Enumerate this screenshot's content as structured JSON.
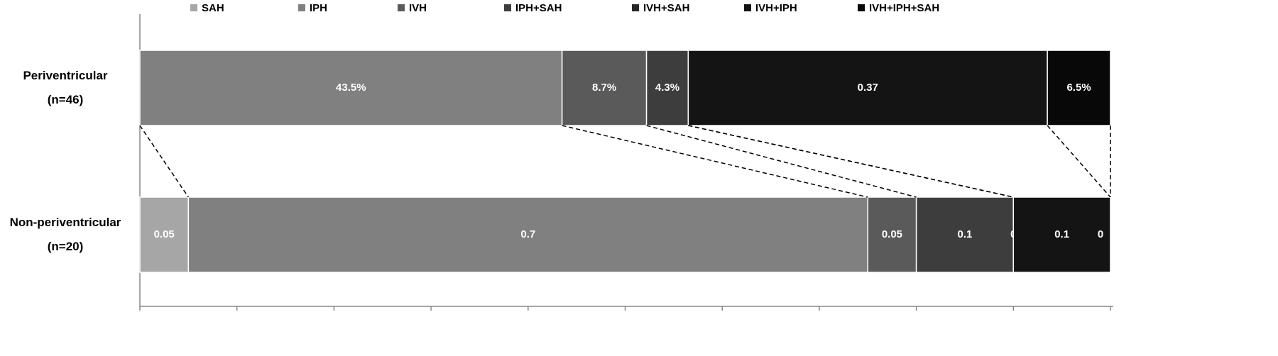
{
  "chart_data": {
    "type": "stacked_bar_h",
    "categories": [
      "Periventricular\n(n=46)",
      "Non-periventricular\n(n=20)"
    ],
    "series": [
      {
        "name": "SAH",
        "color": "#a6a6a6",
        "values": [
          0,
          0.05
        ]
      },
      {
        "name": "IPH",
        "color": "#808080",
        "values": [
          0.435,
          0.7
        ],
        "value_labels": [
          "43.5%",
          "0.7"
        ]
      },
      {
        "name": "IVH",
        "color": "#5a5a5a",
        "values": [
          0.087,
          0.05
        ],
        "value_labels": [
          "8.7%",
          "0.05"
        ]
      },
      {
        "name": "IPH+SAH",
        "color": "#3d3d3d",
        "values": [
          0.043,
          0.1
        ],
        "value_labels": [
          "4.3%",
          "0.1"
        ]
      },
      {
        "name": "IVH+SAH",
        "color": "#262626",
        "values": [
          0,
          0
        ]
      },
      {
        "name": "IVH+IPH",
        "color": "#141414",
        "values": [
          0.37,
          0.1
        ]
      },
      {
        "name": "IVH+IPH+SAH",
        "color": "#080808",
        "values": [
          0.065,
          0
        ],
        "value_labels": [
          "6.5%",
          "0"
        ]
      }
    ],
    "xlim": [
      0,
      1
    ],
    "xticks": [
      0,
      0.1,
      0.2,
      0.3,
      0.4,
      0.5,
      0.6,
      0.7,
      0.8,
      0.9,
      1
    ],
    "legend": "top"
  }
}
